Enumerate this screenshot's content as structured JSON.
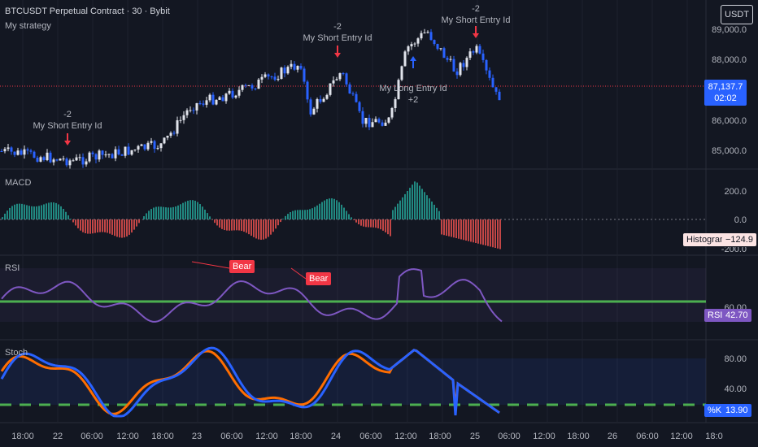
{
  "header": {
    "symbol": "BTCUSDT Perpetual Contract · 30 · Bybit",
    "strategy": "My strategy",
    "currency_button": "USDT"
  },
  "price_axis": {
    "labels": [
      "89,000.0",
      "88,000.0",
      "86,000.0",
      "85,000.0"
    ],
    "last_price": "87,137.7",
    "countdown": "02:02"
  },
  "macd": {
    "title": "MACD",
    "axis": [
      "200.0",
      "0.0",
      "-200.0"
    ],
    "hist_label": "Histogram",
    "hist_value": "−124.9"
  },
  "rsi": {
    "title": "RSI",
    "axis": [
      "60.00"
    ],
    "badge_label": "RSI",
    "value": "42.70",
    "div_labels": [
      "Bear",
      "Bear"
    ]
  },
  "stoch": {
    "title": "Stoch",
    "axis": [
      "80.00",
      "40.00"
    ],
    "k_label": "%K",
    "k_value": "13.90"
  },
  "trades": [
    {
      "qty": "-2",
      "name": "My Short Entry Id"
    },
    {
      "qty": "-2",
      "name": "My Short Entry Id"
    },
    {
      "qty": "-2",
      "name": "My Short Entry Id"
    },
    {
      "qty": "+2",
      "name": "My Long Entry Id"
    }
  ],
  "time_axis": [
    "18:00",
    "22",
    "06:00",
    "12:00",
    "18:00",
    "23",
    "06:00",
    "12:00",
    "18:00",
    "24",
    "06:00",
    "12:00",
    "18:00",
    "25",
    "06:00",
    "12:00",
    "18:00",
    "26",
    "06:00",
    "12:00",
    "18:0"
  ],
  "colors": {
    "up": "#e0e3eb",
    "down": "#2962ff",
    "short_arrow": "#f23645",
    "long_arrow": "#2962ff",
    "rsi": "#7e57c2",
    "stoch_k": "#2962ff",
    "stoch_d": "#ff6d00",
    "hist_up": "#26a69a",
    "hist_down": "#ef5350"
  }
}
